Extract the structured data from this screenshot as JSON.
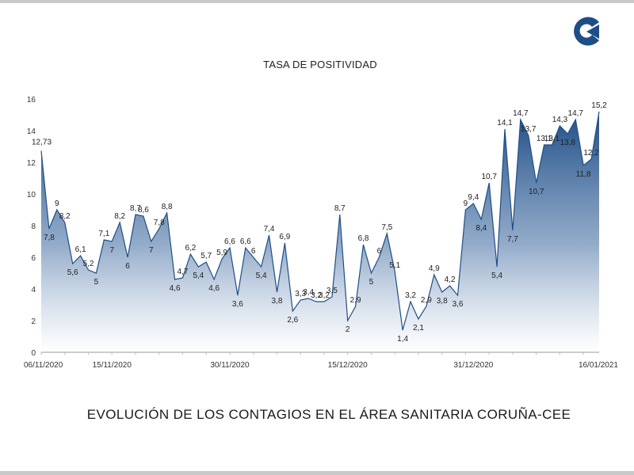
{
  "chart_data": {
    "type": "area",
    "title": "TASA DE POSITIVIDAD",
    "footer": "EVOLUCIÓN DE LOS CONTAGIOS EN EL ÁREA SANITARIA CORUÑA-CEE",
    "xlabel": "",
    "ylabel": "",
    "ylim": [
      0,
      16
    ],
    "yticks": [
      0,
      2,
      4,
      6,
      8,
      10,
      12,
      14,
      16
    ],
    "x_date_range": [
      "06/11/2020",
      "16/01/2021"
    ],
    "xtick_labels": [
      "06/11/2020",
      "15/11/2020",
      "30/11/2020",
      "15/12/2020",
      "31/12/2020",
      "16/01/2021"
    ],
    "x": [
      "06/11/2020",
      "07/11/2020",
      "08/11/2020",
      "09/11/2020",
      "10/11/2020",
      "11/11/2020",
      "12/11/2020",
      "13/11/2020",
      "14/11/2020",
      "15/11/2020",
      "16/11/2020",
      "17/11/2020",
      "18/11/2020",
      "19/11/2020",
      "20/11/2020",
      "21/11/2020",
      "22/11/2020",
      "23/11/2020",
      "24/11/2020",
      "25/11/2020",
      "26/11/2020",
      "27/11/2020",
      "28/11/2020",
      "29/11/2020",
      "30/11/2020",
      "01/12/2020",
      "02/12/2020",
      "03/12/2020",
      "04/12/2020",
      "05/12/2020",
      "06/12/2020",
      "07/12/2020",
      "08/12/2020",
      "09/12/2020",
      "10/12/2020",
      "11/12/2020",
      "12/12/2020",
      "13/12/2020",
      "14/12/2020",
      "15/12/2020",
      "16/12/2020",
      "17/12/2020",
      "18/12/2020",
      "19/12/2020",
      "20/12/2020",
      "21/12/2020",
      "22/12/2020",
      "23/12/2020",
      "24/12/2020",
      "25/12/2020",
      "26/12/2020",
      "27/12/2020",
      "28/12/2020",
      "29/12/2020",
      "30/12/2020",
      "31/12/2020",
      "01/01/2021",
      "02/01/2021",
      "03/01/2021",
      "04/01/2021",
      "05/01/2021",
      "06/01/2021",
      "07/01/2021",
      "08/01/2021",
      "09/01/2021",
      "10/01/2021",
      "11/01/2021",
      "12/01/2021",
      "13/01/2021",
      "14/01/2021",
      "15/01/2021",
      "16/01/2021"
    ],
    "values": [
      12.73,
      7.8,
      9,
      8.2,
      5.6,
      6.1,
      5.2,
      5,
      7.1,
      7,
      8.2,
      6,
      8.7,
      8.6,
      7,
      7.8,
      8.8,
      4.6,
      4.7,
      6.2,
      5.4,
      5.7,
      4.6,
      5.9,
      6.6,
      3.6,
      6.6,
      6,
      5.4,
      7.4,
      3.8,
      6.9,
      2.6,
      3.3,
      3.4,
      3.2,
      3.2,
      3.5,
      8.7,
      2,
      2.9,
      6.8,
      5,
      6,
      7.5,
      5.1,
      1.4,
      3.2,
      2.1,
      2.9,
      4.9,
      3.8,
      4.2,
      3.6,
      9,
      9.4,
      8.4,
      10.7,
      5.4,
      14.1,
      7.7,
      14.7,
      13.7,
      10.7,
      13.1,
      13.1,
      14.3,
      13.8,
      14.7,
      11.8,
      12.2,
      15.2
    ],
    "data_labels": [
      "12,73",
      "7,8",
      "9",
      "8,2",
      "5,6",
      "6,1",
      "5,2",
      "5",
      "7,1",
      "7",
      "8,2",
      "6",
      "8,7",
      "8,6",
      "7",
      "7,8",
      "8,8",
      "4,6",
      "4,7",
      "6,2",
      "5,4",
      "5,7",
      "4,6",
      "5,9",
      "6,6",
      "3,6",
      "6,6",
      "6",
      "5,4",
      "7,4",
      "3,8",
      "6,9",
      "2,6",
      "3,3",
      "3,4",
      "3,2",
      "3,2",
      "3,5",
      "8,7",
      "2",
      "2,9",
      "6,8",
      "5",
      "6",
      "7,5",
      "5,1",
      "1,4",
      "3,2",
      "2,1",
      "2,9",
      "4,9",
      "3,8",
      "4,2",
      "3,6",
      "9",
      "9,4",
      "8,4",
      "10,7",
      "5,4",
      "14,1",
      "7,7",
      "14,7",
      "13,7",
      "10,7",
      "13,1",
      "13,1",
      "14,3",
      "13,8",
      "14,7",
      "11,8",
      "12,2",
      "15,2"
    ],
    "grid": false,
    "legend": "none",
    "colors": {
      "fill_top": "#1f4e86",
      "fill_bottom": "#ffffff",
      "line": "#1f4e86",
      "logo": "#1f4e86"
    }
  }
}
